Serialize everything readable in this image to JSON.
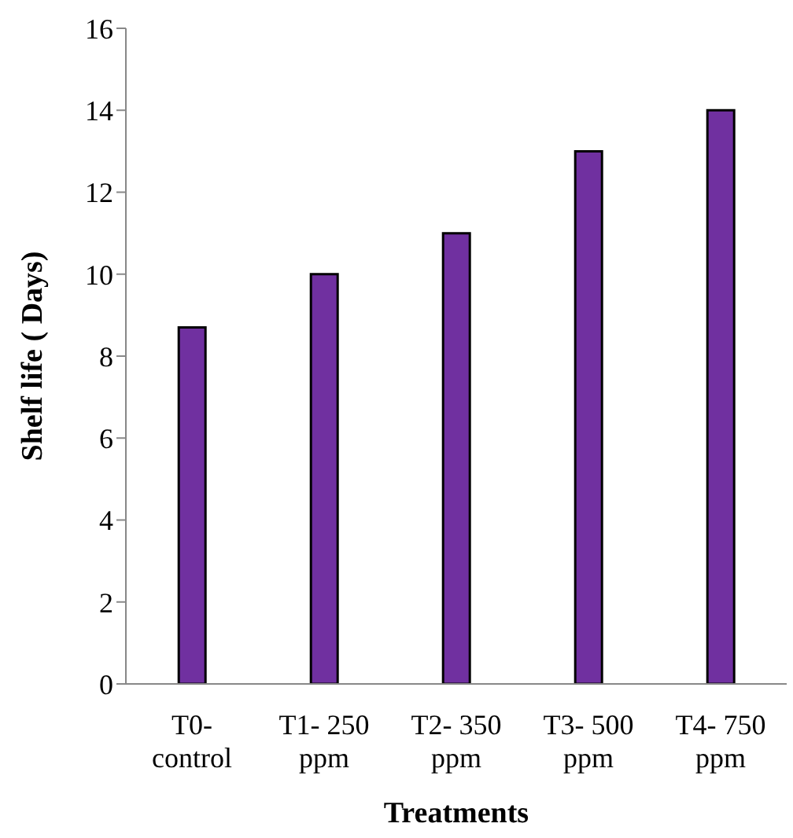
{
  "chart_data": {
    "type": "bar",
    "xlabel": "Treatments",
    "ylabel": "Shelf life ( Days)",
    "categories": [
      "T0- control",
      "T1- 250 ppm",
      "T2- 350 ppm",
      "T3- 500 ppm",
      "T4- 750 ppm"
    ],
    "values": [
      8.7,
      10,
      11,
      13,
      14
    ],
    "color": "#7030a0",
    "ylim": [
      0,
      16
    ],
    "yticks": [
      0,
      2,
      4,
      6,
      8,
      10,
      12,
      14,
      16
    ],
    "grid": false,
    "legend": false
  }
}
